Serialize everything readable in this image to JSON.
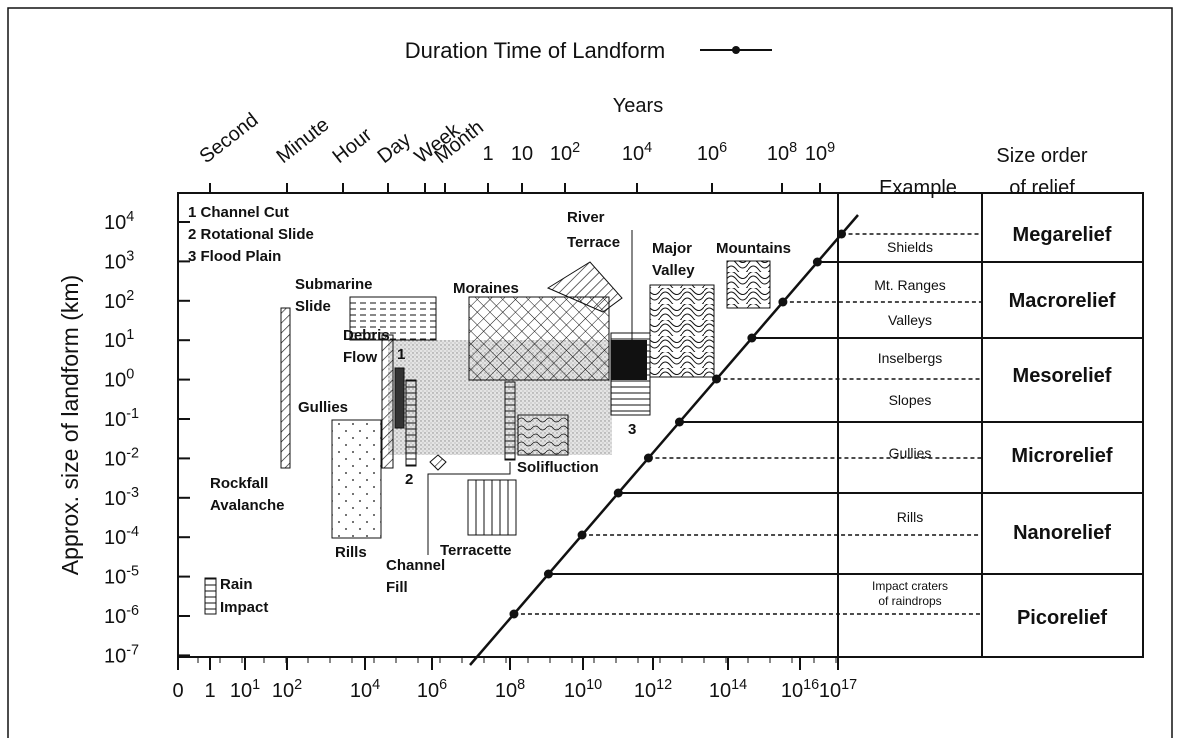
{
  "title": "Duration Time of Landform",
  "top_axis": {
    "time_units": [
      "Second",
      "Minute",
      "Hour",
      "Day",
      "Week",
      "Month"
    ],
    "years_label": "Years",
    "year_ticks": [
      "1",
      "10",
      {
        "base": "10",
        "exp": "2"
      },
      {
        "base": "10",
        "exp": "4"
      },
      {
        "base": "10",
        "exp": "6"
      },
      {
        "base": "10",
        "exp": "8"
      },
      {
        "base": "10",
        "exp": "9"
      }
    ]
  },
  "y_axis": {
    "label": "Approx. size of landform (km)",
    "ticks": [
      {
        "base": "10",
        "exp": "4"
      },
      {
        "base": "10",
        "exp": "3"
      },
      {
        "base": "10",
        "exp": "2"
      },
      {
        "base": "10",
        "exp": "1"
      },
      {
        "base": "10",
        "exp": "0"
      },
      {
        "base": "10",
        "exp": "-1"
      },
      {
        "base": "10",
        "exp": "-2"
      },
      {
        "base": "10",
        "exp": "-3"
      },
      {
        "base": "10",
        "exp": "-4"
      },
      {
        "base": "10",
        "exp": "-5"
      },
      {
        "base": "10",
        "exp": "-6"
      },
      {
        "base": "10",
        "exp": "-7"
      }
    ]
  },
  "x_axis": {
    "ticks": [
      "0",
      "1",
      {
        "base": "10",
        "exp": "1"
      },
      {
        "base": "10",
        "exp": "2"
      },
      {
        "base": "10",
        "exp": "4"
      },
      {
        "base": "10",
        "exp": "6"
      },
      {
        "base": "10",
        "exp": "8"
      },
      {
        "base": "10",
        "exp": "10"
      },
      {
        "base": "10",
        "exp": "12"
      },
      {
        "base": "10",
        "exp": "14"
      },
      {
        "base": "10",
        "exp": "16"
      },
      {
        "base": "10",
        "exp": "17"
      }
    ]
  },
  "columns": {
    "example": "Example",
    "relief": [
      "Size order",
      "of relief"
    ]
  },
  "legend": [
    "1 Channel Cut",
    "2 Rotational Slide",
    "3 Flood Plain"
  ],
  "landforms": [
    [
      "Rockfall",
      "Avalanche"
    ],
    [
      "Rills"
    ],
    [
      "Gullies"
    ],
    [
      "Debris",
      "Flow"
    ],
    [
      "Submarine",
      "Slide"
    ],
    [
      "Moraines"
    ],
    [
      "River",
      "Terrace"
    ],
    [
      "Major",
      "Valley"
    ],
    [
      "Mountains"
    ],
    [
      "Solifluction"
    ],
    [
      "Terracette"
    ],
    [
      "Channel",
      "Fill"
    ],
    [
      "Rain",
      "Impact"
    ],
    [
      "1"
    ],
    [
      "2"
    ],
    [
      "3"
    ]
  ],
  "examples": [
    [
      "Shields"
    ],
    [
      "Mt. Ranges"
    ],
    [
      "Valleys"
    ],
    [
      "Inselbergs"
    ],
    [
      "Slopes"
    ],
    [
      "Gullies"
    ],
    [
      "Rills"
    ],
    [
      "Impact craters",
      "of raindrops"
    ]
  ],
  "relief": [
    "Megarelief",
    "Macrorelief",
    "Mesorelief",
    "Microrelief",
    "Nanorelief",
    "Picorelief"
  ]
}
